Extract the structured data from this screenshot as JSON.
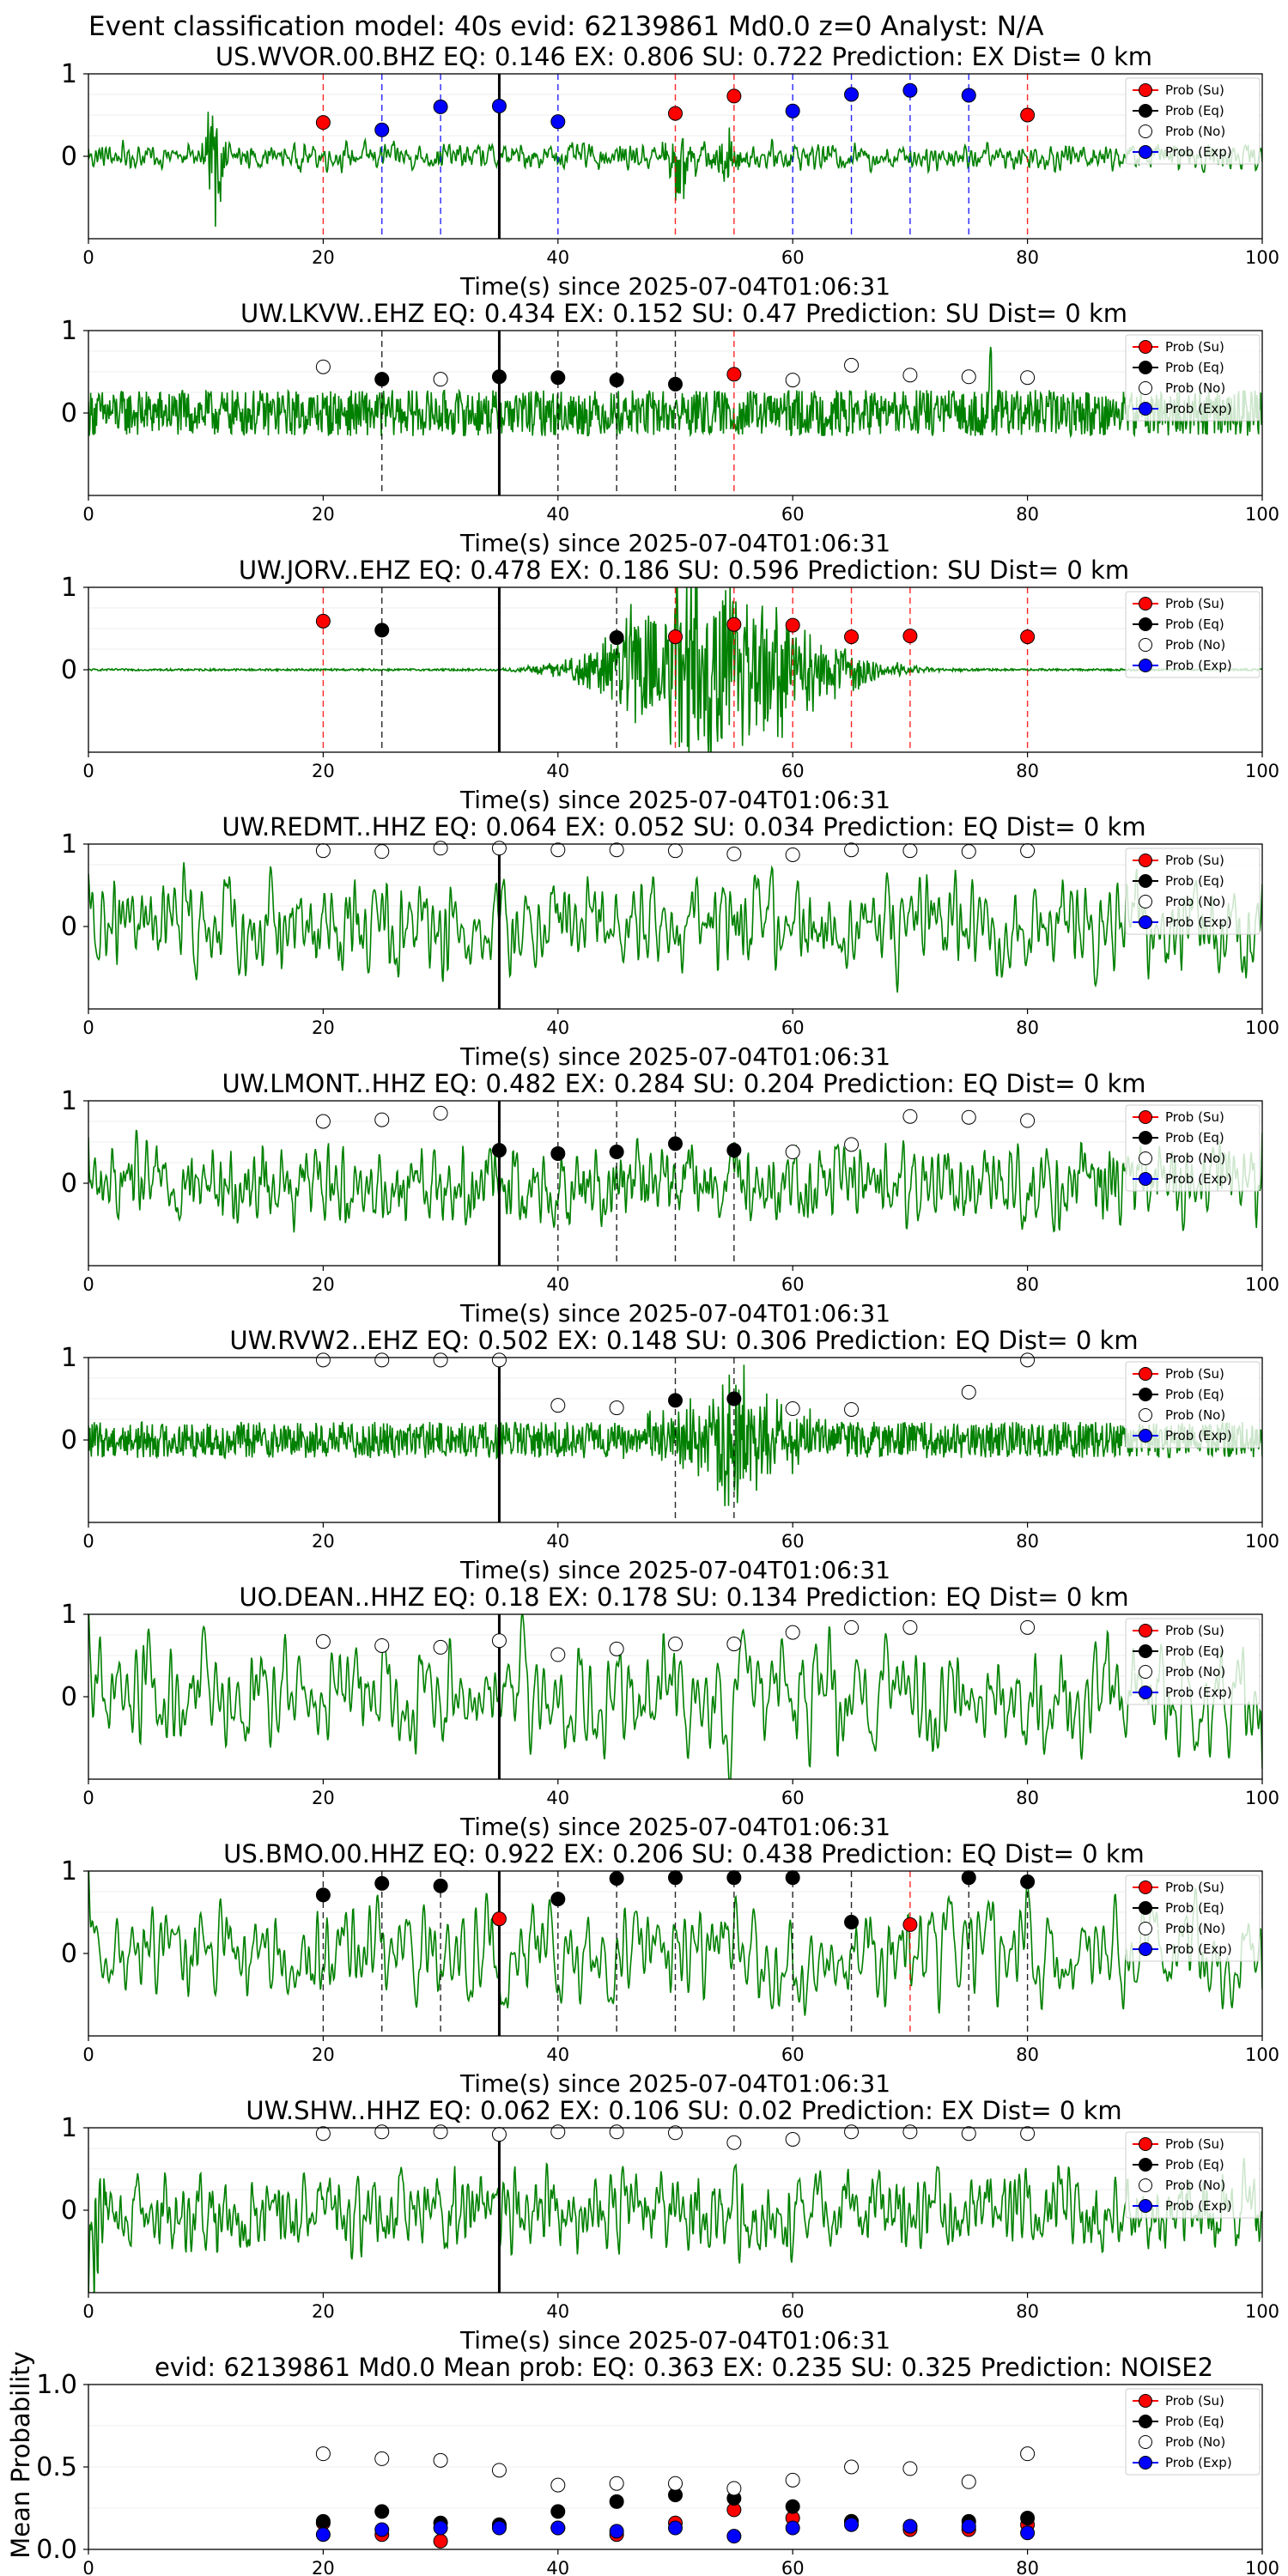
{
  "suptitle": "Event classification model: 40s evid: 62139861 Md0.0 z=0 Analyst: N/A",
  "xlabel": "Time(s) since 2025-07-04T01:06:31",
  "legend": [
    "Prob (Su)",
    "Prob (Eq)",
    "Prob (No)",
    "Prob (Exp)"
  ],
  "colors": {
    "trace": "#008000",
    "su": "#ff0000",
    "eq": "#000000",
    "no": "#ffffff",
    "exp": "#0000ff",
    "su_line": "#ff0000",
    "eq_line": "#000000",
    "exp_line": "#0000ff"
  },
  "chart_data": [
    {
      "type": "line",
      "title": "US.WVOR.00.BHZ   EQ: 0.146  EX: 0.806  SU: 0.722   Prediction: EX    Dist= 0 km",
      "xlim": [
        0,
        100
      ],
      "ylim": [
        -1,
        1
      ],
      "x_ticks": [
        "0",
        "20",
        "40",
        "60",
        "80",
        "100"
      ],
      "y_ticks": [
        "1",
        "0"
      ],
      "trace": {
        "noise": 0.16,
        "smooth": 1,
        "bursts": [
          [
            10.8,
            1.0,
            0.6
          ],
          [
            50.2,
            0.45,
            0.8
          ],
          [
            54.5,
            0.35,
            0.8
          ]
        ]
      },
      "markers": [
        {
          "x": 20,
          "y": 0.41,
          "cls": "su"
        },
        {
          "x": 25,
          "y": 0.32,
          "cls": "exp"
        },
        {
          "x": 30,
          "y": 0.6,
          "cls": "exp"
        },
        {
          "x": 35,
          "y": 0.61,
          "cls": "exp"
        },
        {
          "x": 40,
          "y": 0.42,
          "cls": "exp"
        },
        {
          "x": 50,
          "y": 0.52,
          "cls": "su"
        },
        {
          "x": 55,
          "y": 0.73,
          "cls": "su"
        },
        {
          "x": 60,
          "y": 0.55,
          "cls": "exp"
        },
        {
          "x": 65,
          "y": 0.75,
          "cls": "exp"
        },
        {
          "x": 70,
          "y": 0.8,
          "cls": "exp"
        },
        {
          "x": 75,
          "y": 0.74,
          "cls": "exp"
        },
        {
          "x": 80,
          "y": 0.5,
          "cls": "su"
        }
      ]
    },
    {
      "type": "line",
      "title": "UW.LKVW..EHZ   EQ: 0.434  EX: 0.152  SU: 0.47   Prediction: SU    Dist= 0 km",
      "xlim": [
        0,
        100
      ],
      "ylim": [
        -1,
        1
      ],
      "x_ticks": [
        "0",
        "20",
        "40",
        "60",
        "80",
        "100"
      ],
      "y_ticks": [
        "1",
        "0"
      ],
      "trace": {
        "noise": 0.28,
        "smooth": 0,
        "bursts": [
          [
            76.8,
            1.0,
            0.1
          ]
        ]
      },
      "markers": [
        {
          "x": 20,
          "y": 0.56,
          "cls": "no"
        },
        {
          "x": 25,
          "y": 0.41,
          "cls": "eq"
        },
        {
          "x": 30,
          "y": 0.41,
          "cls": "no"
        },
        {
          "x": 35,
          "y": 0.44,
          "cls": "eq"
        },
        {
          "x": 40,
          "y": 0.43,
          "cls": "eq"
        },
        {
          "x": 45,
          "y": 0.4,
          "cls": "eq"
        },
        {
          "x": 50,
          "y": 0.35,
          "cls": "eq"
        },
        {
          "x": 55,
          "y": 0.47,
          "cls": "su"
        },
        {
          "x": 60,
          "y": 0.4,
          "cls": "no"
        },
        {
          "x": 65,
          "y": 0.58,
          "cls": "no"
        },
        {
          "x": 70,
          "y": 0.46,
          "cls": "no"
        },
        {
          "x": 75,
          "y": 0.44,
          "cls": "no"
        },
        {
          "x": 80,
          "y": 0.43,
          "cls": "no"
        }
      ]
    },
    {
      "type": "line",
      "title": "UW.JORV..EHZ   EQ: 0.478  EX: 0.186  SU: 0.596   Prediction: SU    Dist= 0 km",
      "xlim": [
        0,
        100
      ],
      "ylim": [
        -1,
        1
      ],
      "x_ticks": [
        "0",
        "20",
        "40",
        "60",
        "80",
        "100"
      ],
      "y_ticks": [
        "1",
        "0"
      ],
      "trace": {
        "noise": 0.012,
        "smooth": 0,
        "bursts": [
          [
            54.5,
            0.7,
            6.5
          ],
          [
            50.0,
            0.35,
            4.0
          ]
        ]
      },
      "markers": [
        {
          "x": 20,
          "y": 0.59,
          "cls": "su"
        },
        {
          "x": 25,
          "y": 0.48,
          "cls": "eq"
        },
        {
          "x": 45,
          "y": 0.39,
          "cls": "eq"
        },
        {
          "x": 50,
          "y": 0.4,
          "cls": "su"
        },
        {
          "x": 55,
          "y": 0.55,
          "cls": "su"
        },
        {
          "x": 60,
          "y": 0.54,
          "cls": "su"
        },
        {
          "x": 65,
          "y": 0.4,
          "cls": "su"
        },
        {
          "x": 70,
          "y": 0.41,
          "cls": "su"
        },
        {
          "x": 80,
          "y": 0.4,
          "cls": "su"
        }
      ]
    },
    {
      "type": "line",
      "title": "UW.REDMT..HHZ   EQ: 0.064  EX: 0.052  SU: 0.034   Prediction: EQ    Dist= 0 km",
      "xlim": [
        0,
        100
      ],
      "ylim": [
        -1,
        1
      ],
      "x_ticks": [
        "0",
        "20",
        "40",
        "60",
        "80",
        "100"
      ],
      "y_ticks": [
        "1",
        "0"
      ],
      "trace": {
        "noise": 0.48,
        "smooth": 3,
        "bursts": []
      },
      "markers": [
        {
          "x": 20,
          "y": 0.92,
          "cls": "no"
        },
        {
          "x": 25,
          "y": 0.91,
          "cls": "no"
        },
        {
          "x": 30,
          "y": 0.95,
          "cls": "no"
        },
        {
          "x": 35,
          "y": 0.95,
          "cls": "no"
        },
        {
          "x": 40,
          "y": 0.93,
          "cls": "no"
        },
        {
          "x": 45,
          "y": 0.93,
          "cls": "no"
        },
        {
          "x": 50,
          "y": 0.92,
          "cls": "no"
        },
        {
          "x": 55,
          "y": 0.88,
          "cls": "no"
        },
        {
          "x": 60,
          "y": 0.87,
          "cls": "no"
        },
        {
          "x": 65,
          "y": 0.93,
          "cls": "no"
        },
        {
          "x": 70,
          "y": 0.92,
          "cls": "no"
        },
        {
          "x": 75,
          "y": 0.91,
          "cls": "no"
        },
        {
          "x": 80,
          "y": 0.92,
          "cls": "no"
        }
      ]
    },
    {
      "type": "line",
      "title": "UW.LMONT..HHZ   EQ: 0.482  EX: 0.284  SU: 0.204   Prediction: EQ    Dist= 0 km",
      "xlim": [
        0,
        100
      ],
      "ylim": [
        -1,
        1
      ],
      "x_ticks": [
        "0",
        "20",
        "40",
        "60",
        "80",
        "100"
      ],
      "y_ticks": [
        "1",
        "0"
      ],
      "trace": {
        "noise": 0.45,
        "smooth": 2,
        "bursts": []
      },
      "markers": [
        {
          "x": 20,
          "y": 0.75,
          "cls": "no"
        },
        {
          "x": 25,
          "y": 0.77,
          "cls": "no"
        },
        {
          "x": 30,
          "y": 0.85,
          "cls": "no"
        },
        {
          "x": 35,
          "y": 0.4,
          "cls": "eq"
        },
        {
          "x": 40,
          "y": 0.36,
          "cls": "eq"
        },
        {
          "x": 45,
          "y": 0.38,
          "cls": "eq"
        },
        {
          "x": 50,
          "y": 0.48,
          "cls": "eq"
        },
        {
          "x": 55,
          "y": 0.4,
          "cls": "eq"
        },
        {
          "x": 60,
          "y": 0.38,
          "cls": "no"
        },
        {
          "x": 65,
          "y": 0.47,
          "cls": "no"
        },
        {
          "x": 70,
          "y": 0.81,
          "cls": "no"
        },
        {
          "x": 75,
          "y": 0.8,
          "cls": "no"
        },
        {
          "x": 80,
          "y": 0.76,
          "cls": "no"
        }
      ]
    },
    {
      "type": "line",
      "title": "UW.RVW2..EHZ   EQ: 0.502  EX: 0.148  SU: 0.306   Prediction: EQ    Dist= 0 km",
      "xlim": [
        0,
        100
      ],
      "ylim": [
        -1,
        1
      ],
      "x_ticks": [
        "0",
        "20",
        "40",
        "60",
        "80",
        "100"
      ],
      "y_ticks": [
        "1",
        "0"
      ],
      "trace": {
        "noise": 0.22,
        "smooth": 0,
        "bursts": [
          [
            55.0,
            0.55,
            4.0
          ]
        ]
      },
      "markers": [
        {
          "x": 20,
          "y": 0.97,
          "cls": "no"
        },
        {
          "x": 25,
          "y": 0.97,
          "cls": "no"
        },
        {
          "x": 30,
          "y": 0.97,
          "cls": "no"
        },
        {
          "x": 35,
          "y": 0.97,
          "cls": "no"
        },
        {
          "x": 40,
          "y": 0.42,
          "cls": "no"
        },
        {
          "x": 45,
          "y": 0.39,
          "cls": "no"
        },
        {
          "x": 50,
          "y": 0.48,
          "cls": "eq"
        },
        {
          "x": 55,
          "y": 0.5,
          "cls": "eq"
        },
        {
          "x": 60,
          "y": 0.38,
          "cls": "no"
        },
        {
          "x": 65,
          "y": 0.37,
          "cls": "no"
        },
        {
          "x": 75,
          "y": 0.58,
          "cls": "no"
        },
        {
          "x": 80,
          "y": 0.97,
          "cls": "no"
        }
      ]
    },
    {
      "type": "line",
      "title": "UO.DEAN..HHZ   EQ: 0.18  EX: 0.178  SU: 0.134   Prediction: EQ    Dist= 0 km",
      "xlim": [
        0,
        100
      ],
      "ylim": [
        -1,
        1
      ],
      "x_ticks": [
        "0",
        "20",
        "40",
        "60",
        "80",
        "100"
      ],
      "y_ticks": [
        "1",
        "0"
      ],
      "trace": {
        "noise": 0.5,
        "smooth": 5,
        "bursts": []
      },
      "markers": [
        {
          "x": 20,
          "y": 0.67,
          "cls": "no"
        },
        {
          "x": 25,
          "y": 0.62,
          "cls": "no"
        },
        {
          "x": 30,
          "y": 0.6,
          "cls": "no"
        },
        {
          "x": 35,
          "y": 0.68,
          "cls": "no"
        },
        {
          "x": 40,
          "y": 0.51,
          "cls": "no"
        },
        {
          "x": 45,
          "y": 0.58,
          "cls": "no"
        },
        {
          "x": 50,
          "y": 0.64,
          "cls": "no"
        },
        {
          "x": 55,
          "y": 0.64,
          "cls": "no"
        },
        {
          "x": 60,
          "y": 0.78,
          "cls": "no"
        },
        {
          "x": 65,
          "y": 0.84,
          "cls": "no"
        },
        {
          "x": 70,
          "y": 0.84,
          "cls": "no"
        },
        {
          "x": 80,
          "y": 0.84,
          "cls": "no"
        }
      ]
    },
    {
      "type": "line",
      "title": "US.BMO.00.HHZ   EQ: 0.922  EX: 0.206  SU: 0.438   Prediction: EQ    Dist= 0 km",
      "xlim": [
        0,
        100
      ],
      "ylim": [
        -1,
        1
      ],
      "x_ticks": [
        "0",
        "20",
        "40",
        "60",
        "80",
        "100"
      ],
      "y_ticks": [
        "1",
        "0"
      ],
      "trace": {
        "noise": 0.45,
        "smooth": 5,
        "bursts": []
      },
      "markers": [
        {
          "x": 20,
          "y": 0.71,
          "cls": "eq"
        },
        {
          "x": 25,
          "y": 0.85,
          "cls": "eq"
        },
        {
          "x": 30,
          "y": 0.82,
          "cls": "eq"
        },
        {
          "x": 35,
          "y": 0.42,
          "cls": "su"
        },
        {
          "x": 40,
          "y": 0.66,
          "cls": "eq"
        },
        {
          "x": 45,
          "y": 0.91,
          "cls": "eq"
        },
        {
          "x": 50,
          "y": 0.92,
          "cls": "eq"
        },
        {
          "x": 55,
          "y": 0.92,
          "cls": "eq"
        },
        {
          "x": 60,
          "y": 0.92,
          "cls": "eq"
        },
        {
          "x": 65,
          "y": 0.38,
          "cls": "eq"
        },
        {
          "x": 70,
          "y": 0.35,
          "cls": "su"
        },
        {
          "x": 75,
          "y": 0.92,
          "cls": "eq"
        },
        {
          "x": 80,
          "y": 0.87,
          "cls": "eq"
        }
      ]
    },
    {
      "type": "line",
      "title": "UW.SHW..HHZ   EQ: 0.062  EX: 0.106  SU: 0.02   Prediction: EX    Dist= 0 km",
      "xlim": [
        0,
        100
      ],
      "ylim": [
        -1,
        1
      ],
      "x_ticks": [
        "0",
        "20",
        "40",
        "60",
        "80",
        "100"
      ],
      "y_ticks": [
        "1",
        "0"
      ],
      "trace": {
        "noise": 0.45,
        "smooth": 2,
        "bursts": [
          [
            0.5,
            0.8,
            0.6
          ]
        ]
      },
      "markers": [
        {
          "x": 20,
          "y": 0.93,
          "cls": "no"
        },
        {
          "x": 25,
          "y": 0.95,
          "cls": "no"
        },
        {
          "x": 30,
          "y": 0.95,
          "cls": "no"
        },
        {
          "x": 35,
          "y": 0.92,
          "cls": "no"
        },
        {
          "x": 40,
          "y": 0.95,
          "cls": "no"
        },
        {
          "x": 45,
          "y": 0.95,
          "cls": "no"
        },
        {
          "x": 50,
          "y": 0.94,
          "cls": "no"
        },
        {
          "x": 55,
          "y": 0.82,
          "cls": "no"
        },
        {
          "x": 60,
          "y": 0.86,
          "cls": "no"
        },
        {
          "x": 65,
          "y": 0.95,
          "cls": "no"
        },
        {
          "x": 70,
          "y": 0.95,
          "cls": "no"
        },
        {
          "x": 75,
          "y": 0.93,
          "cls": "no"
        },
        {
          "x": 80,
          "y": 0.93,
          "cls": "no"
        }
      ]
    },
    {
      "type": "scatter",
      "title": "evid: 62139861  Md0.0   Mean prob:    EQ: 0.363  EX: 0.235  SU: 0.325   Prediction: NOISE2",
      "ylabel": "Mean Probability",
      "xlim": [
        0,
        100
      ],
      "ylim": [
        0,
        1
      ],
      "x_ticks": [
        "0",
        "20",
        "40",
        "60",
        "80",
        "100"
      ],
      "y_ticks": [
        "0.0",
        "0.5",
        "1.0"
      ],
      "x": [
        20,
        25,
        30,
        35,
        40,
        45,
        50,
        55,
        60,
        65,
        70,
        75,
        80
      ],
      "series": [
        {
          "name": "Prob (Su)",
          "cls": "su",
          "values": [
            0.16,
            0.09,
            0.05,
            0.14,
            0.13,
            0.09,
            0.16,
            0.24,
            0.19,
            0.17,
            0.12,
            0.12,
            0.15
          ]
        },
        {
          "name": "Prob (Eq)",
          "cls": "eq",
          "values": [
            0.17,
            0.23,
            0.16,
            0.15,
            0.23,
            0.29,
            0.33,
            0.31,
            0.26,
            0.17,
            0.14,
            0.17,
            0.19
          ]
        },
        {
          "name": "Prob (No)",
          "cls": "no",
          "values": [
            0.58,
            0.55,
            0.54,
            0.48,
            0.39,
            0.4,
            0.4,
            0.37,
            0.42,
            0.5,
            0.49,
            0.41,
            0.58
          ]
        },
        {
          "name": "Prob (Exp)",
          "cls": "exp",
          "values": [
            0.09,
            0.12,
            0.13,
            0.13,
            0.13,
            0.11,
            0.13,
            0.08,
            0.13,
            0.15,
            0.14,
            0.14,
            0.1
          ]
        }
      ]
    }
  ]
}
